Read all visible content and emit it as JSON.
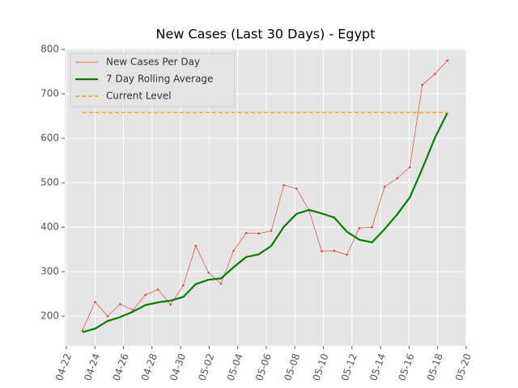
{
  "chart_data": {
    "type": "line",
    "title": "New Cases (Last 30 Days) - Egypt",
    "x": [
      1.13,
      2.01,
      2.89,
      3.77,
      4.66,
      5.54,
      6.42,
      7.3,
      8.18,
      9.06,
      9.95,
      10.83,
      11.71,
      12.59,
      13.47,
      14.35,
      15.23,
      16.12,
      17.0,
      17.88,
      18.76,
      19.64,
      20.52,
      21.4,
      22.29,
      23.17,
      24.05,
      24.93,
      25.81,
      26.69
    ],
    "series": [
      {
        "name": "New Cases Per Day",
        "color": "#e24a33",
        "width": 0.7,
        "markers": true,
        "values": [
          168,
          232,
          200,
          227,
          214,
          248,
          260,
          226,
          269,
          358,
          298,
          273,
          347,
          387,
          386,
          392,
          495,
          487,
          438,
          346,
          347,
          338,
          398,
          400,
          491,
          510,
          535,
          720,
          745,
          775
        ]
      },
      {
        "name": "7 Day Rolling Average",
        "color": "#008000",
        "width": 2.2,
        "markers": false,
        "values": [
          164,
          172,
          189,
          198,
          210,
          225,
          231,
          235,
          243,
          272,
          282,
          285,
          310,
          333,
          339,
          358,
          401,
          430,
          439,
          431,
          422,
          390,
          372,
          366,
          396,
          429,
          467,
          532,
          601,
          658
        ]
      }
    ],
    "hline": {
      "name": "Current Level",
      "color": "#ffa500",
      "value": 658
    },
    "xlim": [
      -0.11,
      28.0
    ],
    "xticks": [
      {
        "value": 0,
        "label": "04-22"
      },
      {
        "value": 2,
        "label": "04-24"
      },
      {
        "value": 4,
        "label": "04-26"
      },
      {
        "value": 6,
        "label": "04-28"
      },
      {
        "value": 8,
        "label": "04-30"
      },
      {
        "value": 10,
        "label": "05-02"
      },
      {
        "value": 12,
        "label": "05-04"
      },
      {
        "value": 14,
        "label": "05-06"
      },
      {
        "value": 16,
        "label": "05-08"
      },
      {
        "value": 18,
        "label": "05-10"
      },
      {
        "value": 20,
        "label": "05-12"
      },
      {
        "value": 22,
        "label": "05-14"
      },
      {
        "value": 24,
        "label": "05-16"
      },
      {
        "value": 26,
        "label": "05-18"
      },
      {
        "value": 28,
        "label": "05-20"
      }
    ],
    "ylim": [
      133,
      802
    ],
    "yticks": [
      200,
      300,
      400,
      500,
      600,
      700,
      800
    ],
    "grid": true,
    "legend": "upper left"
  }
}
